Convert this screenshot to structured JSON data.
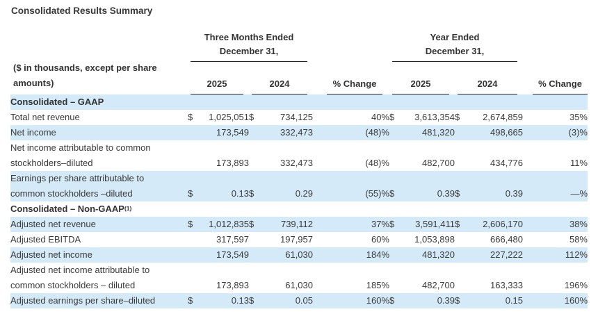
{
  "page_title": "Consolidated Results Summary",
  "colors": {
    "highlight_row": "#d5eaf8",
    "text": "#3a3a3a",
    "rule": "#222222"
  },
  "table": {
    "caption_lines": [
      "($ in thousands, except per share",
      "amounts)"
    ],
    "period_groups": [
      {
        "line1": "Three Months Ended",
        "line2": "December 31,"
      },
      {
        "line1": "Year Ended",
        "line2": "December 31,"
      }
    ],
    "column_headers": [
      "2025",
      "2024",
      "% Change",
      "2025",
      "2024",
      "% Change"
    ],
    "rows": [
      {
        "type": "section",
        "label_lines": [
          "Consolidated – GAAP"
        ],
        "superscript": "",
        "highlight": true
      },
      {
        "type": "data",
        "label_lines": [
          "Total net revenue"
        ],
        "highlight": false,
        "cells": [
          "$",
          "1,025,051",
          "$",
          "734,125",
          "40%",
          "$",
          "3,613,354",
          "$",
          "2,674,859",
          "35%"
        ]
      },
      {
        "type": "data",
        "label_lines": [
          "Net income"
        ],
        "highlight": true,
        "cells": [
          "",
          "173,549",
          "",
          "332,473",
          "(48)%",
          "",
          "481,320",
          "",
          "498,665",
          "(3)%"
        ]
      },
      {
        "type": "data",
        "label_lines": [
          "Net income attributable to common",
          "stockholders–diluted"
        ],
        "highlight": false,
        "cells": [
          "",
          "173,893",
          "",
          "332,473",
          "(48)%",
          "",
          "482,700",
          "",
          "434,776",
          "11%"
        ]
      },
      {
        "type": "data",
        "label_lines": [
          "Earnings per share attributable to",
          "common stockholders –diluted"
        ],
        "highlight": true,
        "cells": [
          "$",
          "0.13",
          "$",
          "0.29",
          "(55)%",
          "$",
          "0.39",
          "$",
          "0.39",
          "—%"
        ]
      },
      {
        "type": "section",
        "label_lines": [
          "Consolidated – Non-GAAP"
        ],
        "superscript": "(1)",
        "highlight": false
      },
      {
        "type": "data",
        "label_lines": [
          "Adjusted net revenue"
        ],
        "highlight": true,
        "cells": [
          "$",
          "1,012,835",
          "$",
          "739,112",
          "37%",
          "$",
          "3,591,411",
          "$",
          "2,606,170",
          "38%"
        ]
      },
      {
        "type": "data",
        "label_lines": [
          "Adjusted EBITDA"
        ],
        "highlight": false,
        "cells": [
          "",
          "317,597",
          "",
          "197,957",
          "60%",
          "",
          "1,053,898",
          "",
          "666,480",
          "58%"
        ]
      },
      {
        "type": "data",
        "label_lines": [
          "Adjusted net income"
        ],
        "highlight": true,
        "cells": [
          "",
          "173,549",
          "",
          "61,030",
          "184%",
          "",
          "481,320",
          "",
          "227,222",
          "112%"
        ]
      },
      {
        "type": "data",
        "label_lines": [
          "Adjusted net income attributable to",
          "common stockholders – diluted"
        ],
        "highlight": false,
        "cells": [
          "",
          "173,893",
          "",
          "61,030",
          "185%",
          "",
          "482,700",
          "",
          "163,333",
          "196%"
        ]
      },
      {
        "type": "data",
        "label_lines": [
          "Adjusted earnings per share–diluted"
        ],
        "highlight": true,
        "cells": [
          "$",
          "0.13",
          "$",
          "0.05",
          "160%",
          "$",
          "0.39",
          "$",
          "0.15",
          "160%"
        ]
      }
    ]
  }
}
